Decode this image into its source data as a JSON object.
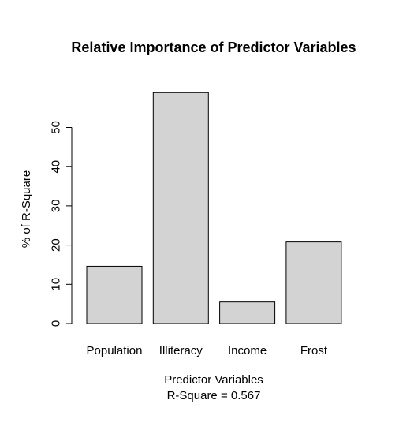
{
  "chart_data": {
    "type": "bar",
    "title": "Relative Importance of Predictor Variables",
    "xlabel": "Predictor Variables",
    "subtitle": "R-Square =  0.567",
    "ylabel": "% of R-Square",
    "categories": [
      "Population",
      "Illiteracy",
      "Income",
      "Frost"
    ],
    "values": [
      14.6,
      58.9,
      5.5,
      20.8
    ],
    "ylim": [
      0,
      60
    ],
    "yticks": [
      0,
      10,
      20,
      30,
      40,
      50
    ],
    "bar_color": "#d3d3d3",
    "grid": false
  }
}
